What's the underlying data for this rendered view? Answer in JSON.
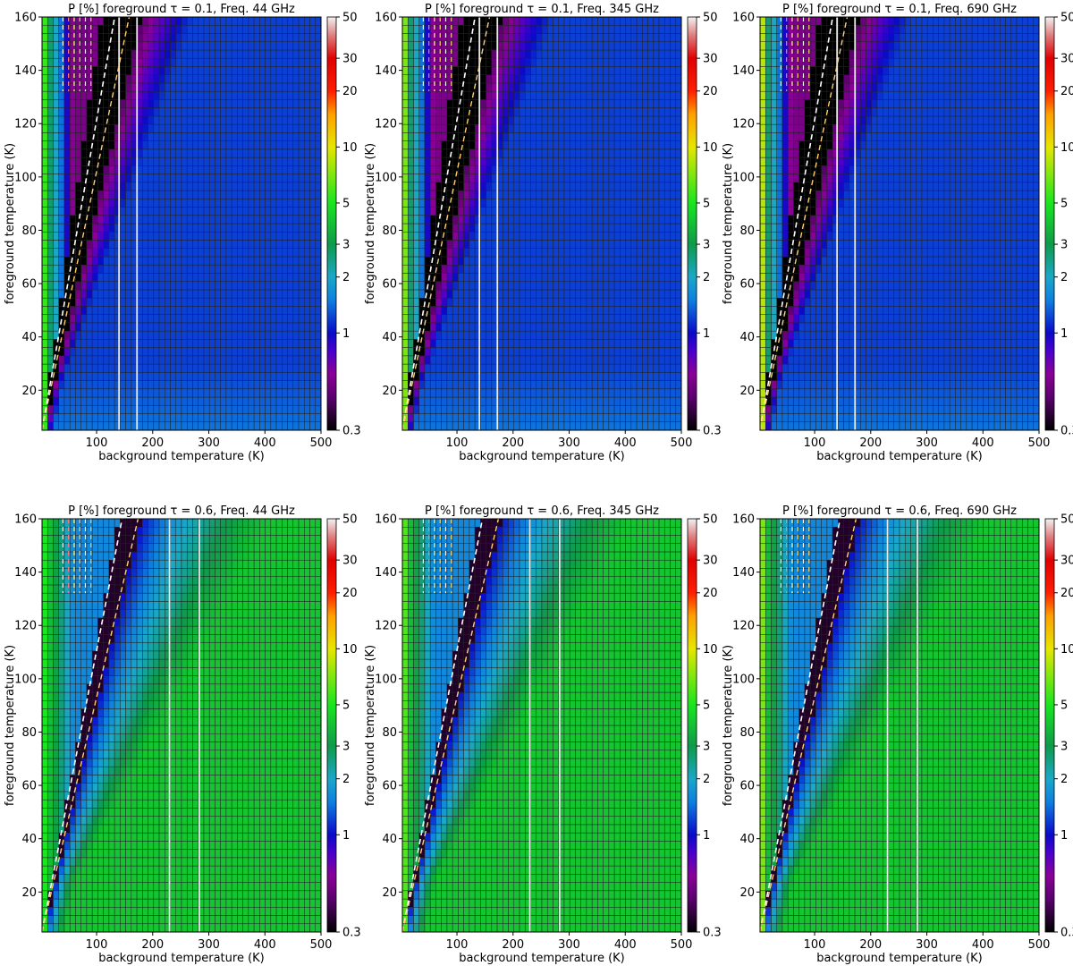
{
  "figure": {
    "xlabel": "background temperature (K)",
    "ylabel": "foreground temperature (K)"
  },
  "colorbar": {
    "scale": "log",
    "range": [
      0.3,
      50
    ],
    "tick_labels": [
      "50",
      "30",
      "20",
      "10",
      "5",
      "3",
      "2",
      "1",
      "0.3"
    ],
    "tick_values": [
      50,
      30,
      20,
      10,
      5,
      3,
      2,
      1,
      0.3
    ],
    "colormap_stops": [
      {
        "value": 0.3,
        "color": "#000000"
      },
      {
        "value": 0.45,
        "color": "#5a006e"
      },
      {
        "value": 0.6,
        "color": "#8a0096"
      },
      {
        "value": 0.8,
        "color": "#4a00cc"
      },
      {
        "value": 1.0,
        "color": "#0a0ac8"
      },
      {
        "value": 1.5,
        "color": "#0e7fe0"
      },
      {
        "value": 2.0,
        "color": "#1aa8c8"
      },
      {
        "value": 3.0,
        "color": "#0f9a4a"
      },
      {
        "value": 5.0,
        "color": "#18e61e"
      },
      {
        "value": 10,
        "color": "#e6e600"
      },
      {
        "value": 15,
        "color": "#ffa000"
      },
      {
        "value": 20,
        "color": "#ff1e00"
      },
      {
        "value": 30,
        "color": "#e00000"
      },
      {
        "value": 40,
        "color": "#e08080"
      },
      {
        "value": 50,
        "color": "#f2f2f2"
      }
    ]
  },
  "chart_data": [
    {
      "type": "heatmap",
      "title": "P [%]  foreground  τ = 0.1, Freq. 44 GHz",
      "tau": 0.1,
      "freq_GHz": 44,
      "xlabel": "background temperature (K)",
      "ylabel": "foreground temperature (K)",
      "xlim": [
        2.7,
        500
      ],
      "ylim": [
        5,
        160
      ],
      "xticks": [
        100,
        200,
        300,
        400,
        500
      ],
      "yticks": [
        20,
        40,
        60,
        80,
        100,
        120,
        140,
        160
      ],
      "minimum_ridge_slope": 1.1,
      "solid_vertical_lines_K": [
        140,
        172
      ],
      "dashed_vertical_lines_K": [
        40,
        50,
        60,
        70,
        80,
        90
      ]
    },
    {
      "type": "heatmap",
      "title": "P [%]  foreground  τ = 0.1, Freq. 345 GHz",
      "tau": 0.1,
      "freq_GHz": 345,
      "xlabel": "background temperature (K)",
      "ylabel": "foreground temperature (K)",
      "xlim": [
        2.7,
        500
      ],
      "ylim": [
        5,
        160
      ],
      "xticks": [
        100,
        200,
        300,
        400,
        500
      ],
      "yticks": [
        20,
        40,
        60,
        80,
        100,
        120,
        140,
        160
      ],
      "minimum_ridge_slope": 1.1,
      "solid_vertical_lines_K": [
        140,
        172
      ],
      "dashed_vertical_lines_K": [
        40,
        50,
        60,
        70,
        80,
        90
      ]
    },
    {
      "type": "heatmap",
      "title": "P [%]  foreground  τ = 0.1, Freq. 690 GHz",
      "tau": 0.1,
      "freq_GHz": 690,
      "xlabel": "background temperature (K)",
      "ylabel": "foreground temperature (K)",
      "xlim": [
        2.7,
        500
      ],
      "ylim": [
        5,
        160
      ],
      "xticks": [
        100,
        200,
        300,
        400,
        500
      ],
      "yticks": [
        20,
        40,
        60,
        80,
        100,
        120,
        140,
        160
      ],
      "minimum_ridge_slope": 1.1,
      "solid_vertical_lines_K": [
        140,
        172
      ],
      "dashed_vertical_lines_K": [
        40,
        50,
        60,
        70,
        80,
        90
      ]
    },
    {
      "type": "heatmap",
      "title": "P [%]  foreground  τ = 0.6, Freq. 44 GHz",
      "tau": 0.6,
      "freq_GHz": 44,
      "xlabel": "background temperature (K)",
      "ylabel": "foreground temperature (K)",
      "xlim": [
        2.7,
        500
      ],
      "ylim": [
        5,
        160
      ],
      "xticks": [
        100,
        200,
        300,
        400,
        500
      ],
      "yticks": [
        20,
        40,
        60,
        80,
        100,
        120,
        140,
        160
      ],
      "minimum_ridge_slope": 1.0,
      "solid_vertical_lines_K": [
        230,
        283
      ],
      "dashed_vertical_lines_K": [
        40,
        50,
        60,
        70,
        80,
        90
      ]
    },
    {
      "type": "heatmap",
      "title": "P [%]  foreground  τ = 0.6, Freq. 345 GHz",
      "tau": 0.6,
      "freq_GHz": 345,
      "xlabel": "background temperature (K)",
      "ylabel": "foreground temperature (K)",
      "xlim": [
        2.7,
        500
      ],
      "ylim": [
        5,
        160
      ],
      "xticks": [
        100,
        200,
        300,
        400,
        500
      ],
      "yticks": [
        20,
        40,
        60,
        80,
        100,
        120,
        140,
        160
      ],
      "minimum_ridge_slope": 1.0,
      "solid_vertical_lines_K": [
        230,
        283
      ],
      "dashed_vertical_lines_K": [
        40,
        50,
        60,
        70,
        80,
        90
      ]
    },
    {
      "type": "heatmap",
      "title": "P [%]  foreground  τ = 0.6, Freq. 690 GHz",
      "tau": 0.6,
      "freq_GHz": 690,
      "xlabel": "background temperature (K)",
      "ylabel": "foreground temperature (K)",
      "xlim": [
        2.7,
        500
      ],
      "ylim": [
        5,
        160
      ],
      "xticks": [
        100,
        200,
        300,
        400,
        500
      ],
      "yticks": [
        20,
        40,
        60,
        80,
        100,
        120,
        140,
        160
      ],
      "minimum_ridge_slope": 1.0,
      "solid_vertical_lines_K": [
        230,
        283
      ],
      "dashed_vertical_lines_K": [
        40,
        50,
        60,
        70,
        80,
        90
      ]
    }
  ]
}
